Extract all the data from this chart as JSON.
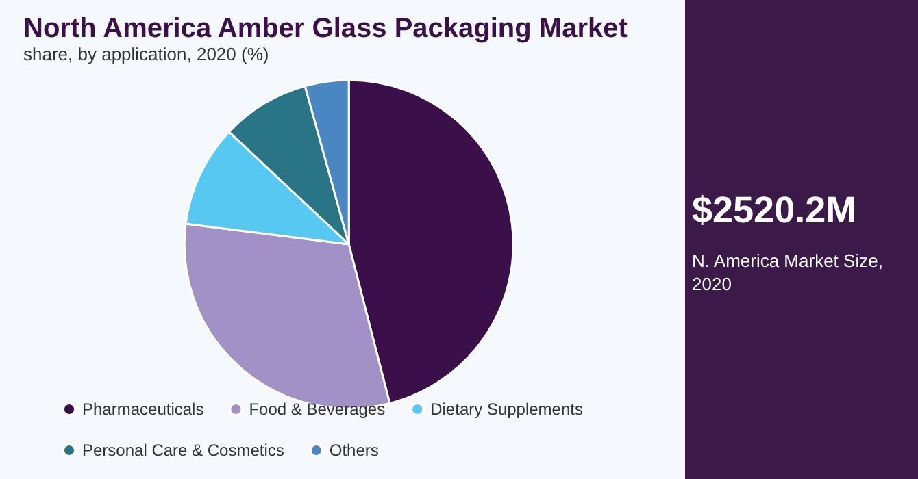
{
  "chart_data": {
    "type": "pie",
    "title": "North America Amber Glass Packaging Market",
    "subtitle": "share, by application, 2020 (%)",
    "categories": [
      "Pharmaceuticals",
      "Food & Beverages",
      "Dietary Supplements",
      "Personal Care & Cosmetics",
      "Others"
    ],
    "values": [
      46,
      31,
      10,
      8.7,
      4.3
    ],
    "colors": [
      "#3a0f4a",
      "#a291c6",
      "#56c8f2",
      "#2a7585",
      "#4a87c2"
    ],
    "legend": "bottom",
    "annotations": [
      "$2520.2M",
      "N. America Market Size, 2020"
    ]
  }
}
